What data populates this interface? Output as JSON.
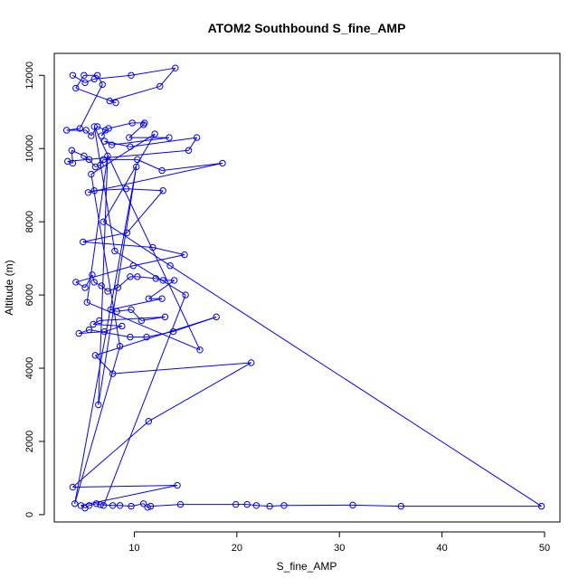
{
  "chart_data": {
    "type": "line",
    "title": "ATOM2 Southbound S_fine_AMP",
    "xlabel": "S_fine_AMP",
    "ylabel": "Altitude (m)",
    "xlim": [
      2.2,
      51.5
    ],
    "ylim": [
      -200,
      12600
    ],
    "x_ticks": [
      10,
      20,
      30,
      40,
      50
    ],
    "y_ticks": [
      0,
      2000,
      4000,
      6000,
      8000,
      10000,
      12000
    ],
    "grid": false,
    "legend": "none",
    "line_color": "#0000ff",
    "marker": "open-circle",
    "series": [
      {
        "values": [
          {
            "x": 4.0,
            "y": 12000
          },
          {
            "x": 5.2,
            "y": 11800
          },
          {
            "x": 6.1,
            "y": 11900
          },
          {
            "x": 9.7,
            "y": 12000
          },
          {
            "x": 14.0,
            "y": 12200
          },
          {
            "x": 12.5,
            "y": 11700
          },
          {
            "x": 7.6,
            "y": 11300
          },
          {
            "x": 8.2,
            "y": 11250
          },
          {
            "x": 4.3,
            "y": 11650
          },
          {
            "x": 5.1,
            "y": 12000
          },
          {
            "x": 6.4,
            "y": 12000
          },
          {
            "x": 6.9,
            "y": 11750
          },
          {
            "x": 4.7,
            "y": 10550
          },
          {
            "x": 3.4,
            "y": 10500
          },
          {
            "x": 5.3,
            "y": 10500
          },
          {
            "x": 5.8,
            "y": 10350
          },
          {
            "x": 6.4,
            "y": 10600
          },
          {
            "x": 7.2,
            "y": 10500
          },
          {
            "x": 6.8,
            "y": 10350
          },
          {
            "x": 7.5,
            "y": 10550
          },
          {
            "x": 9.8,
            "y": 10700
          },
          {
            "x": 11.0,
            "y": 10700
          },
          {
            "x": 10.9,
            "y": 10650
          },
          {
            "x": 9.5,
            "y": 10300
          },
          {
            "x": 13.4,
            "y": 10300
          },
          {
            "x": 7.8,
            "y": 10100
          },
          {
            "x": 7.1,
            "y": 10200
          },
          {
            "x": 9.6,
            "y": 10050
          },
          {
            "x": 16.1,
            "y": 10300
          },
          {
            "x": 15.3,
            "y": 9950
          },
          {
            "x": 3.5,
            "y": 9650
          },
          {
            "x": 4.0,
            "y": 9600
          },
          {
            "x": 3.9,
            "y": 9950
          },
          {
            "x": 5.1,
            "y": 9800
          },
          {
            "x": 5.6,
            "y": 9700
          },
          {
            "x": 6.2,
            "y": 9500
          },
          {
            "x": 6.7,
            "y": 9550
          },
          {
            "x": 7.0,
            "y": 9700
          },
          {
            "x": 10.3,
            "y": 9700
          },
          {
            "x": 12.7,
            "y": 9400
          },
          {
            "x": 18.6,
            "y": 9600
          },
          {
            "x": 5.5,
            "y": 8800
          },
          {
            "x": 6.1,
            "y": 8850
          },
          {
            "x": 9.2,
            "y": 8900
          },
          {
            "x": 12.8,
            "y": 8850
          },
          {
            "x": 9.3,
            "y": 7700
          },
          {
            "x": 5.0,
            "y": 7450
          },
          {
            "x": 11.8,
            "y": 7300
          },
          {
            "x": 14.9,
            "y": 7100
          },
          {
            "x": 9.9,
            "y": 6800
          },
          {
            "x": 4.3,
            "y": 6350
          },
          {
            "x": 5.2,
            "y": 6200
          },
          {
            "x": 5.9,
            "y": 6550
          },
          {
            "x": 6.1,
            "y": 6350
          },
          {
            "x": 6.8,
            "y": 6250
          },
          {
            "x": 7.4,
            "y": 6100
          },
          {
            "x": 8.4,
            "y": 6200
          },
          {
            "x": 9.6,
            "y": 6500
          },
          {
            "x": 10.3,
            "y": 6500
          },
          {
            "x": 12.1,
            "y": 6450
          },
          {
            "x": 12.8,
            "y": 6400
          },
          {
            "x": 13.9,
            "y": 6400
          },
          {
            "x": 11.4,
            "y": 5900
          },
          {
            "x": 12.7,
            "y": 5900
          },
          {
            "x": 7.7,
            "y": 5600
          },
          {
            "x": 8.3,
            "y": 5550
          },
          {
            "x": 9.7,
            "y": 5600
          },
          {
            "x": 10.7,
            "y": 5300
          },
          {
            "x": 13.0,
            "y": 5400
          },
          {
            "x": 6.6,
            "y": 5300
          },
          {
            "x": 6.0,
            "y": 5200
          },
          {
            "x": 8.8,
            "y": 5150
          },
          {
            "x": 7.1,
            "y": 5000
          },
          {
            "x": 4.6,
            "y": 4950
          },
          {
            "x": 5.6,
            "y": 5050
          },
          {
            "x": 9.6,
            "y": 4850
          },
          {
            "x": 11.2,
            "y": 4850
          },
          {
            "x": 13.8,
            "y": 5000
          },
          {
            "x": 18.0,
            "y": 5400
          },
          {
            "x": 6.2,
            "y": 4350
          },
          {
            "x": 7.9,
            "y": 3850
          },
          {
            "x": 21.4,
            "y": 4150
          },
          {
            "x": 11.4,
            "y": 2550
          },
          {
            "x": 4.0,
            "y": 750
          },
          {
            "x": 14.2,
            "y": 800
          },
          {
            "x": 4.8,
            "y": 250
          },
          {
            "x": 5.2,
            "y": 180
          },
          {
            "x": 5.6,
            "y": 250
          },
          {
            "x": 6.3,
            "y": 300
          },
          {
            "x": 6.7,
            "y": 270
          },
          {
            "x": 7.9,
            "y": 250
          },
          {
            "x": 8.6,
            "y": 250
          },
          {
            "x": 9.7,
            "y": 230
          },
          {
            "x": 10.9,
            "y": 300
          },
          {
            "x": 11.3,
            "y": 200
          },
          {
            "x": 11.6,
            "y": 230
          },
          {
            "x": 14.5,
            "y": 280
          },
          {
            "x": 19.9,
            "y": 280
          },
          {
            "x": 21.0,
            "y": 280
          },
          {
            "x": 21.9,
            "y": 250
          },
          {
            "x": 23.2,
            "y": 230
          },
          {
            "x": 24.6,
            "y": 250
          },
          {
            "x": 31.3,
            "y": 260
          },
          {
            "x": 36.0,
            "y": 230
          },
          {
            "x": 49.7,
            "y": 230
          },
          {
            "x": 13.5,
            "y": 6800
          },
          {
            "x": 7.0,
            "y": 8000
          },
          {
            "x": 12.0,
            "y": 10400
          },
          {
            "x": 5.8,
            "y": 9300
          },
          {
            "x": 8.6,
            "y": 4600
          },
          {
            "x": 4.2,
            "y": 300
          },
          {
            "x": 10.2,
            "y": 9500
          },
          {
            "x": 6.5,
            "y": 3000
          },
          {
            "x": 7.4,
            "y": 9800
          },
          {
            "x": 5.4,
            "y": 5800
          },
          {
            "x": 16.4,
            "y": 4500
          },
          {
            "x": 6.1,
            "y": 10600
          },
          {
            "x": 8.1,
            "y": 7200
          },
          {
            "x": 15.0,
            "y": 6000
          },
          {
            "x": 7.0,
            "y": 250
          }
        ]
      }
    ]
  }
}
